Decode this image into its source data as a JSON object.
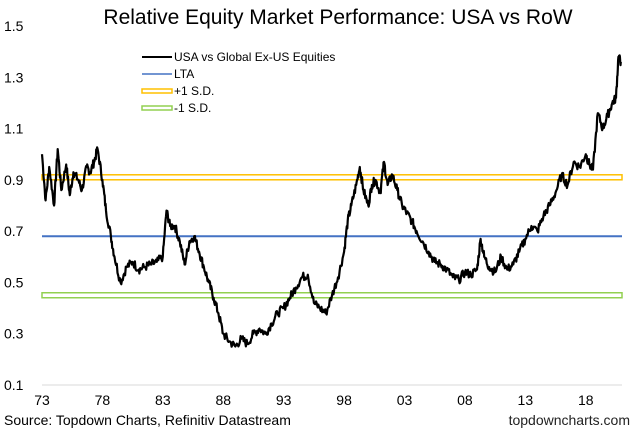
{
  "chart_data": {
    "type": "line",
    "title": "Relative Equity Market Performance: USA vs RoW",
    "xlabel": "",
    "ylabel": "",
    "xlim": [
      1973,
      2021
    ],
    "ylim": [
      0.1,
      1.5
    ],
    "grid": false,
    "legend_position": "top-left",
    "x_tick_labels": [
      "73",
      "78",
      "83",
      "88",
      "93",
      "98",
      "03",
      "08",
      "13",
      "18"
    ],
    "x_tick_values": [
      1973,
      1978,
      1983,
      1988,
      1993,
      1998,
      2003,
      2008,
      2013,
      2018
    ],
    "y_tick_labels": [
      "1.5",
      "1.3",
      "1.1",
      "0.9",
      "0.7",
      "0.5",
      "0.3",
      "0.1"
    ],
    "y_tick_values": [
      1.5,
      1.3,
      1.1,
      0.9,
      0.7,
      0.5,
      0.3,
      0.1
    ],
    "series": [
      {
        "name": "USA vs Global Ex-US Equities",
        "color": "#000000",
        "style": "line",
        "x": [
          1973.0,
          1973.3,
          1973.6,
          1974.0,
          1974.3,
          1974.6,
          1975.0,
          1975.3,
          1975.6,
          1976.0,
          1976.3,
          1976.7,
          1977.0,
          1977.3,
          1977.6,
          1978.0,
          1978.3,
          1978.7,
          1979.0,
          1979.5,
          1980.0,
          1980.5,
          1981.0,
          1981.5,
          1982.0,
          1982.5,
          1983.0,
          1983.3,
          1983.6,
          1984.0,
          1984.4,
          1984.8,
          1985.2,
          1985.6,
          1986.0,
          1986.4,
          1986.8,
          1987.2,
          1987.6,
          1988.0,
          1988.5,
          1989.0,
          1989.5,
          1990.0,
          1990.5,
          1991.0,
          1991.5,
          1992.0,
          1992.5,
          1993.0,
          1993.5,
          1994.0,
          1994.5,
          1995.0,
          1995.5,
          1996.0,
          1996.5,
          1997.0,
          1997.5,
          1998.0,
          1998.3,
          1998.6,
          1999.0,
          1999.3,
          1999.6,
          2000.0,
          2000.3,
          2000.6,
          2001.0,
          2001.3,
          2001.6,
          2002.0,
          2002.4,
          2002.8,
          2003.2,
          2003.6,
          2004.0,
          2004.5,
          2005.0,
          2005.5,
          2006.0,
          2006.5,
          2007.0,
          2007.5,
          2008.0,
          2008.5,
          2009.0,
          2009.3,
          2009.6,
          2010.0,
          2010.5,
          2011.0,
          2011.5,
          2012.0,
          2012.5,
          2013.0,
          2013.5,
          2014.0,
          2014.5,
          2015.0,
          2015.5,
          2016.0,
          2016.5,
          2017.0,
          2017.5,
          2018.0,
          2018.3,
          2018.6,
          2019.0,
          2019.4,
          2019.8,
          2020.2,
          2020.5,
          2020.7,
          2020.9
        ],
        "y": [
          1.0,
          0.82,
          0.95,
          0.8,
          1.02,
          0.86,
          0.96,
          0.84,
          0.93,
          0.9,
          0.86,
          0.95,
          0.93,
          0.97,
          1.02,
          0.9,
          0.78,
          0.68,
          0.6,
          0.5,
          0.56,
          0.58,
          0.55,
          0.56,
          0.57,
          0.58,
          0.6,
          0.78,
          0.72,
          0.72,
          0.66,
          0.57,
          0.66,
          0.68,
          0.62,
          0.56,
          0.5,
          0.44,
          0.38,
          0.3,
          0.27,
          0.25,
          0.28,
          0.26,
          0.3,
          0.32,
          0.3,
          0.34,
          0.38,
          0.4,
          0.44,
          0.48,
          0.52,
          0.53,
          0.42,
          0.4,
          0.38,
          0.45,
          0.52,
          0.62,
          0.74,
          0.8,
          0.88,
          0.95,
          0.86,
          0.8,
          0.88,
          0.9,
          0.85,
          0.97,
          0.88,
          0.92,
          0.86,
          0.8,
          0.77,
          0.74,
          0.7,
          0.66,
          0.62,
          0.58,
          0.57,
          0.55,
          0.52,
          0.51,
          0.54,
          0.53,
          0.55,
          0.67,
          0.6,
          0.56,
          0.54,
          0.6,
          0.55,
          0.57,
          0.62,
          0.67,
          0.72,
          0.7,
          0.76,
          0.8,
          0.85,
          0.92,
          0.88,
          0.97,
          0.95,
          1.0,
          0.96,
          0.94,
          1.16,
          1.1,
          1.15,
          1.2,
          1.22,
          1.38,
          1.36
        ]
      },
      {
        "name": "LTA",
        "color": "#4472C4",
        "style": "hline",
        "value": 0.68
      },
      {
        "name": "+1 S.D.",
        "color": "#FFC000",
        "style": "hline",
        "value": 0.91
      },
      {
        "name": "-1 S.D.",
        "color": "#92D050",
        "style": "hline",
        "value": 0.45
      }
    ],
    "source": "Source: Topdown Charts, Refinitiv Datastream",
    "watermark": "topdowncharts.com"
  }
}
